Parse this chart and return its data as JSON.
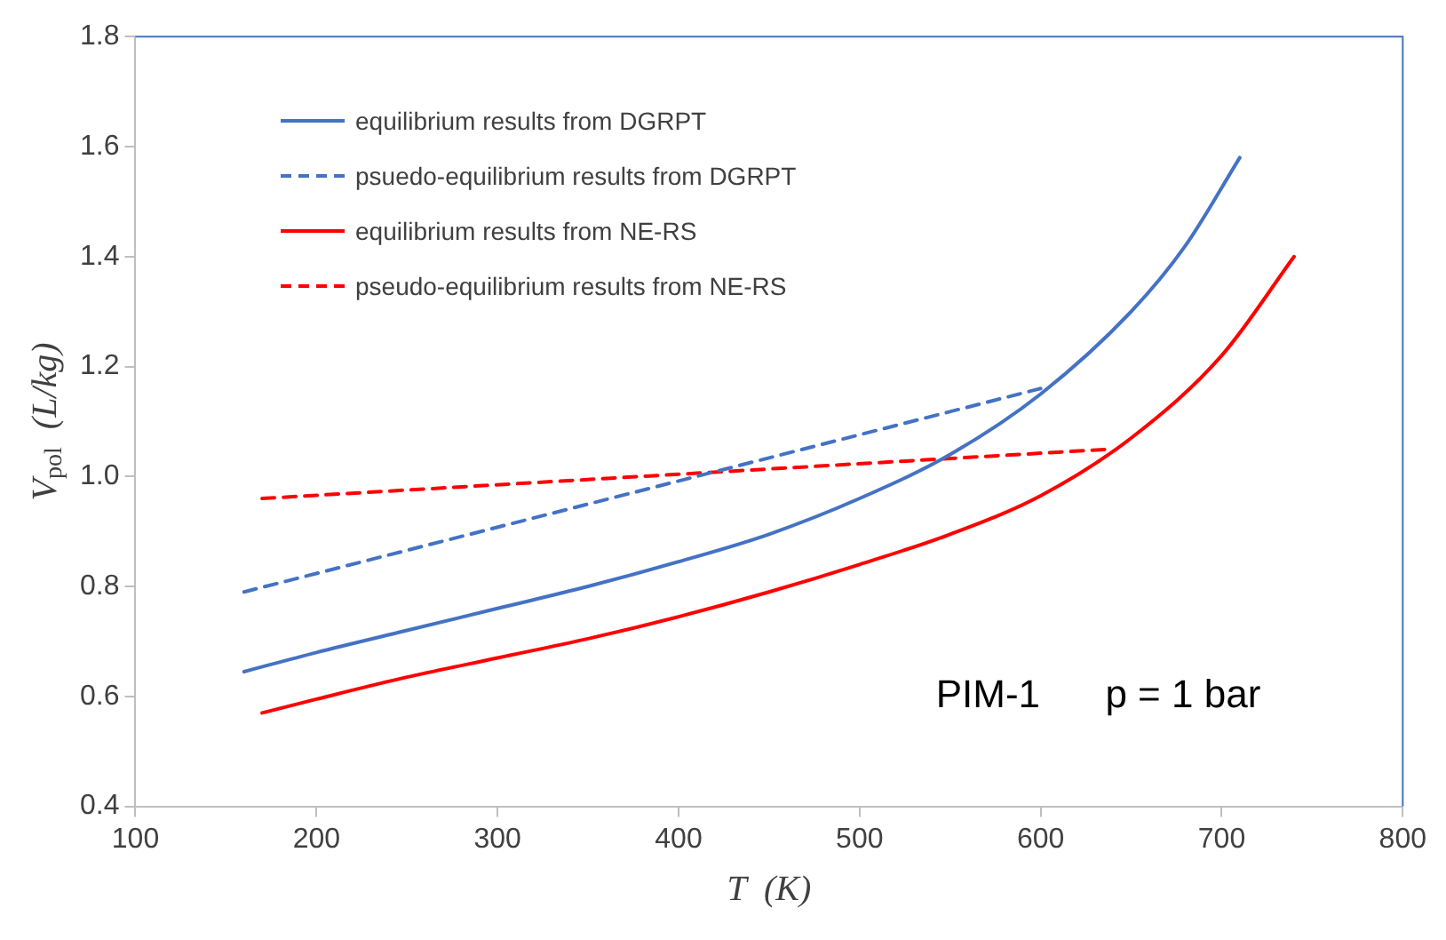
{
  "chart_data": {
    "type": "line",
    "xlabel": "T  (K)",
    "ylabel": "V$_{pol}$  (L/kg)",
    "xlim": [
      100,
      800
    ],
    "xticks": [
      100,
      200,
      300,
      400,
      500,
      600,
      700,
      800
    ],
    "ylim": [
      0.4,
      1.8
    ],
    "yticks": [
      {
        "value": 0.4,
        "label": "0.4"
      },
      {
        "value": 0.6,
        "label": "0.6"
      },
      {
        "value": 0.8,
        "label": "0.8"
      },
      {
        "value": 1.0,
        "label": "1.0"
      },
      {
        "value": 1.2,
        "label": "1.2"
      },
      {
        "value": 1.4,
        "label": "1.4"
      },
      {
        "value": 1.6,
        "label": "1.6"
      },
      {
        "value": 1.8,
        "label": "1.8"
      }
    ],
    "grid": false,
    "legend": "top left",
    "marker": "none",
    "annotations": [
      "PIM-1      p = 1 bar"
    ],
    "series": [
      {
        "name": "equilibrium results from DGRPT",
        "color": "#4472c4",
        "line_style": "solid",
        "x": [
          160,
          200,
          250,
          300,
          350,
          400,
          450,
          500,
          550,
          600,
          650,
          680,
          710
        ],
        "values": [
          0.645,
          0.68,
          0.72,
          0.76,
          0.8,
          0.845,
          0.895,
          0.96,
          1.04,
          1.15,
          1.3,
          1.42,
          1.58
        ]
      },
      {
        "name": "psuedo-equilibrium results from DGRPT",
        "color": "#4472c4",
        "line_style": "dashed",
        "x": [
          160,
          600
        ],
        "values": [
          0.79,
          1.16
        ]
      },
      {
        "name": "equilibrium results from NE-RS",
        "color": "#ff0000",
        "line_style": "solid",
        "x": [
          170,
          200,
          250,
          300,
          350,
          400,
          450,
          500,
          550,
          600,
          650,
          700,
          740
        ],
        "values": [
          0.57,
          0.595,
          0.635,
          0.67,
          0.705,
          0.745,
          0.79,
          0.84,
          0.895,
          0.965,
          1.07,
          1.22,
          1.4
        ]
      },
      {
        "name": "pseudo-equilibrium results from NE-RS",
        "color": "#ff0000",
        "line_style": "dashed",
        "x": [
          170,
          640
        ],
        "values": [
          0.96,
          1.05
        ]
      }
    ]
  }
}
